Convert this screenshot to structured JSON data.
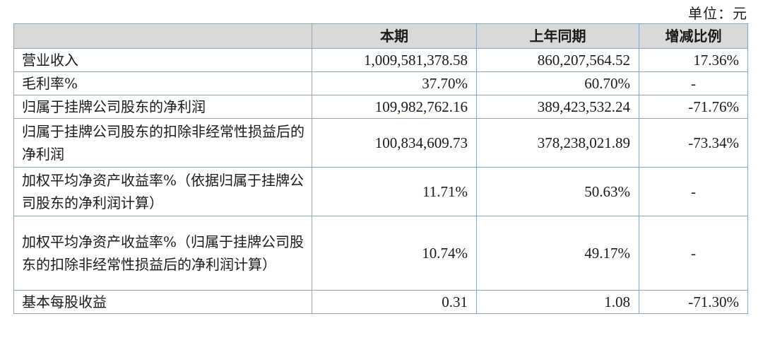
{
  "unit_label": "单位：元",
  "table": {
    "columns": [
      "",
      "本期",
      "上年同期",
      "增减比例"
    ],
    "rows": [
      {
        "label": "营业收入",
        "current": "1,009,581,378.58",
        "previous": "860,207,564.52",
        "change": "17.36%"
      },
      {
        "label": "毛利率%",
        "current": "37.70%",
        "previous": "60.70%",
        "change": "-"
      },
      {
        "label": "归属于挂牌公司股东的净利润",
        "current": "109,982,762.16",
        "previous": "389,423,532.24",
        "change": "-71.76%"
      },
      {
        "label": "归属于挂牌公司股东的扣除非经常性损益后的净利润",
        "current": "100,834,609.73",
        "previous": "378,238,021.89",
        "change": "-73.34%"
      },
      {
        "label": "加权平均净资产收益率%（依据归属于挂牌公司股东的净利润计算）",
        "current": "11.71%",
        "previous": "50.63%",
        "change": "-"
      },
      {
        "label": "加权平均净资产收益率%（归属于挂牌公司股东的扣除非经常性损益后的净利润计算）",
        "current": "10.74%",
        "previous": "49.17%",
        "change": "-"
      },
      {
        "label": "基本每股收益",
        "current": "0.31",
        "previous": "1.08",
        "change": "-71.30%"
      }
    ]
  }
}
